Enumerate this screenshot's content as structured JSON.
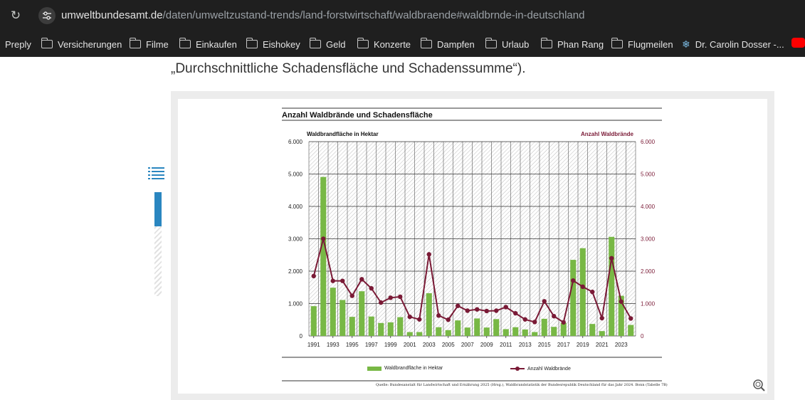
{
  "browser": {
    "url_host": "umweltbundesamt.de",
    "url_path": "/daten/umweltzustand-trends/land-forstwirtschaft/waldbraende#waldbrnde-in-deutschland",
    "bookmarks": [
      {
        "label": "Preply",
        "icon": "none"
      },
      {
        "label": "Versicherungen",
        "icon": "folder-icon"
      },
      {
        "label": "Filme",
        "icon": "folder-icon"
      },
      {
        "label": "Einkaufen",
        "icon": "folder-icon"
      },
      {
        "label": "Eishokey",
        "icon": "folder-icon"
      },
      {
        "label": "Geld",
        "icon": "folder-icon"
      },
      {
        "label": "Konzerte",
        "icon": "folder-icon"
      },
      {
        "label": "Dampfen",
        "icon": "folder-icon"
      },
      {
        "label": "Urlaub",
        "icon": "folder-icon"
      },
      {
        "label": "Phan Rang",
        "icon": "folder-icon"
      },
      {
        "label": "Flugmeilen",
        "icon": "folder-icon"
      },
      {
        "label": "Dr. Carolin Dosser -...",
        "icon": "snowflake-icon"
      }
    ]
  },
  "page": {
    "intro_text": "„Durchschnittliche Schadensfläche und Schadenssumme“)."
  },
  "chart_data": {
    "type": "bar",
    "title": "Anzahl Waldbrände und Schadensfläche",
    "ylabel": "Waldbrandfläche in Hektar",
    "y2label": "Anzahl Waldbrände",
    "ylim": [
      0,
      6000
    ],
    "y2lim": [
      0,
      6000
    ],
    "yticks": [
      "0",
      "1.000",
      "2.000",
      "3.000",
      "4.000",
      "5.000",
      "6.000"
    ],
    "y2ticks": [
      "0",
      "1.000",
      "2.000",
      "3.000",
      "4.000",
      "5.000",
      "6.000"
    ],
    "xtick_labels": [
      "1991",
      "1993",
      "1995",
      "1997",
      "1999",
      "2001",
      "2003",
      "2005",
      "2007",
      "2009",
      "2011",
      "2013",
      "2015",
      "2017",
      "2019",
      "2021",
      "2023"
    ],
    "categories": [
      "1991",
      "1992",
      "1993",
      "1994",
      "1995",
      "1996",
      "1997",
      "1998",
      "1999",
      "2000",
      "2001",
      "2002",
      "2003",
      "2004",
      "2005",
      "2006",
      "2007",
      "2008",
      "2009",
      "2010",
      "2011",
      "2012",
      "2013",
      "2014",
      "2015",
      "2016",
      "2017",
      "2018",
      "2019",
      "2020",
      "2021",
      "2022",
      "2023",
      "2024"
    ],
    "series": [
      {
        "name": "Waldbrandfläche in Hektar",
        "type": "bar",
        "color": "#78b845",
        "values": [
          920,
          4910,
          1490,
          1110,
          590,
          1380,
          600,
          400,
          420,
          580,
          120,
          120,
          1320,
          270,
          180,
          480,
          260,
          540,
          260,
          520,
          210,
          270,
          200,
          120,
          530,
          280,
          400,
          2350,
          2710,
          370,
          150,
          3060,
          1240,
          340
        ]
      },
      {
        "name": "Anzahl Waldbrände",
        "type": "line",
        "color": "#7a1a36",
        "values": [
          1850,
          3000,
          1700,
          1700,
          1240,
          1750,
          1470,
          1030,
          1180,
          1210,
          590,
          510,
          2520,
          630,
          500,
          930,
          780,
          820,
          770,
          780,
          890,
          700,
          510,
          430,
          1070,
          610,
          420,
          1710,
          1520,
          1360,
          550,
          2400,
          1060,
          540
        ]
      }
    ],
    "grid": true,
    "legend_position": "bottom",
    "source": "Quelle: Bundesanstalt für Landwirtschaft und Ernährung 2025 (Hrsg.), Waldbrandstatistik der Bundesrepublik Deutschland für das Jahr 2024. Bonn (Tabelle 7B)"
  },
  "colors": {
    "accent": "#2a86c0",
    "bar": "#78b845",
    "line": "#7a1a36"
  }
}
